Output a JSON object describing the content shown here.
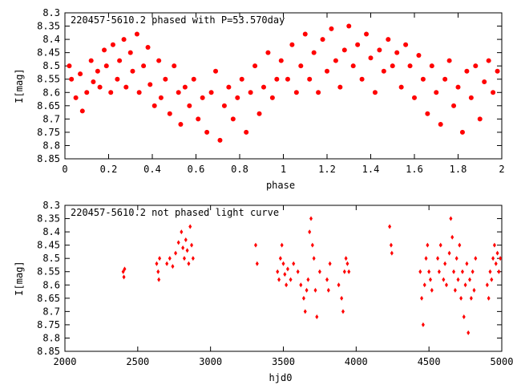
{
  "chart_data": [
    {
      "type": "scatter",
      "title": "220457-5610.2 phased with P=53.570day",
      "xlabel": "phase",
      "ylabel": "I[mag]",
      "xlim": [
        0,
        2
      ],
      "ylim": [
        8.85,
        8.3
      ],
      "y_inverted": true,
      "xticks": [
        "0",
        "0.2",
        "0.4",
        "0.6",
        "0.8",
        "1",
        "1.2",
        "1.4",
        "1.6",
        "1.8",
        "2"
      ],
      "yticks": [
        "8.3",
        "8.35",
        "8.4",
        "8.45",
        "8.5",
        "8.55",
        "8.6",
        "8.65",
        "8.7",
        "8.75",
        "8.8",
        "8.85"
      ],
      "color": "#ff0000",
      "marker": "filled-circle",
      "points_estimated": [
        [
          0.02,
          8.5
        ],
        [
          0.03,
          8.55
        ],
        [
          0.05,
          8.62
        ],
        [
          0.07,
          8.53
        ],
        [
          0.08,
          8.67
        ],
        [
          0.1,
          8.6
        ],
        [
          0.12,
          8.48
        ],
        [
          0.13,
          8.56
        ],
        [
          0.15,
          8.52
        ],
        [
          0.16,
          8.58
        ],
        [
          0.18,
          8.44
        ],
        [
          0.19,
          8.5
        ],
        [
          0.21,
          8.6
        ],
        [
          0.22,
          8.42
        ],
        [
          0.24,
          8.55
        ],
        [
          0.25,
          8.48
        ],
        [
          0.27,
          8.4
        ],
        [
          0.28,
          8.58
        ],
        [
          0.3,
          8.45
        ],
        [
          0.31,
          8.52
        ],
        [
          0.33,
          8.38
        ],
        [
          0.34,
          8.6
        ],
        [
          0.36,
          8.5
        ],
        [
          0.38,
          8.43
        ],
        [
          0.39,
          8.57
        ],
        [
          0.41,
          8.65
        ],
        [
          0.43,
          8.48
        ],
        [
          0.44,
          8.62
        ],
        [
          0.46,
          8.55
        ],
        [
          0.48,
          8.68
        ],
        [
          0.5,
          8.5
        ],
        [
          0.52,
          8.6
        ],
        [
          0.53,
          8.72
        ],
        [
          0.55,
          8.58
        ],
        [
          0.57,
          8.65
        ],
        [
          0.59,
          8.55
        ],
        [
          0.61,
          8.7
        ],
        [
          0.63,
          8.62
        ],
        [
          0.65,
          8.75
        ],
        [
          0.67,
          8.6
        ],
        [
          0.69,
          8.52
        ],
        [
          0.71,
          8.78
        ],
        [
          0.73,
          8.65
        ],
        [
          0.75,
          8.58
        ],
        [
          0.77,
          8.7
        ],
        [
          0.79,
          8.62
        ],
        [
          0.81,
          8.55
        ],
        [
          0.83,
          8.75
        ],
        [
          0.85,
          8.6
        ],
        [
          0.87,
          8.5
        ],
        [
          0.89,
          8.68
        ],
        [
          0.91,
          8.58
        ],
        [
          0.93,
          8.45
        ],
        [
          0.95,
          8.62
        ],
        [
          0.97,
          8.55
        ],
        [
          0.99,
          8.48
        ],
        [
          1.02,
          8.55
        ],
        [
          1.04,
          8.42
        ],
        [
          1.06,
          8.6
        ],
        [
          1.08,
          8.5
        ],
        [
          1.1,
          8.38
        ],
        [
          1.12,
          8.55
        ],
        [
          1.14,
          8.45
        ],
        [
          1.16,
          8.6
        ],
        [
          1.18,
          8.4
        ],
        [
          1.2,
          8.52
        ],
        [
          1.22,
          8.36
        ],
        [
          1.24,
          8.48
        ],
        [
          1.26,
          8.58
        ],
        [
          1.28,
          8.44
        ],
        [
          1.3,
          8.35
        ],
        [
          1.32,
          8.5
        ],
        [
          1.34,
          8.42
        ],
        [
          1.36,
          8.55
        ],
        [
          1.38,
          8.38
        ],
        [
          1.4,
          8.47
        ],
        [
          1.42,
          8.6
        ],
        [
          1.44,
          8.44
        ],
        [
          1.46,
          8.52
        ],
        [
          1.48,
          8.4
        ],
        [
          1.5,
          8.5
        ],
        [
          1.52,
          8.45
        ],
        [
          1.54,
          8.58
        ],
        [
          1.56,
          8.42
        ],
        [
          1.58,
          8.5
        ],
        [
          1.6,
          8.62
        ],
        [
          1.62,
          8.46
        ],
        [
          1.64,
          8.55
        ],
        [
          1.66,
          8.68
        ],
        [
          1.68,
          8.5
        ],
        [
          1.7,
          8.6
        ],
        [
          1.72,
          8.72
        ],
        [
          1.74,
          8.55
        ],
        [
          1.76,
          8.48
        ],
        [
          1.78,
          8.65
        ],
        [
          1.8,
          8.58
        ],
        [
          1.82,
          8.75
        ],
        [
          1.84,
          8.52
        ],
        [
          1.86,
          8.62
        ],
        [
          1.88,
          8.5
        ],
        [
          1.9,
          8.7
        ],
        [
          1.92,
          8.56
        ],
        [
          1.94,
          8.48
        ],
        [
          1.96,
          8.6
        ],
        [
          1.98,
          8.52
        ]
      ]
    },
    {
      "type": "scatter",
      "title": "220457-5610.2 not phased light curve",
      "xlabel": "hjd0",
      "ylabel": "I[mag]",
      "xlim": [
        2000,
        5000
      ],
      "ylim": [
        8.85,
        8.3
      ],
      "y_inverted": true,
      "xticks": [
        "2000",
        "2500",
        "3000",
        "3500",
        "4000",
        "4500",
        "5000"
      ],
      "yticks": [
        "8.3",
        "8.35",
        "8.4",
        "8.45",
        "8.5",
        "8.55",
        "8.6",
        "8.65",
        "8.7",
        "8.75",
        "8.8",
        "8.85"
      ],
      "color": "#ff0000",
      "marker": "small-diamond",
      "points_estimated": [
        [
          2400,
          8.55
        ],
        [
          2405,
          8.57
        ],
        [
          2410,
          8.54
        ],
        [
          2630,
          8.52
        ],
        [
          2640,
          8.55
        ],
        [
          2645,
          8.58
        ],
        [
          2650,
          8.5
        ],
        [
          2700,
          8.52
        ],
        [
          2720,
          8.5
        ],
        [
          2740,
          8.53
        ],
        [
          2760,
          8.48
        ],
        [
          2780,
          8.44
        ],
        [
          2800,
          8.4
        ],
        [
          2810,
          8.46
        ],
        [
          2820,
          8.5
        ],
        [
          2830,
          8.43
        ],
        [
          2840,
          8.47
        ],
        [
          2850,
          8.52
        ],
        [
          2860,
          8.38
        ],
        [
          2870,
          8.45
        ],
        [
          2880,
          8.5
        ],
        [
          3310,
          8.45
        ],
        [
          3320,
          8.52
        ],
        [
          3460,
          8.55
        ],
        [
          3470,
          8.58
        ],
        [
          3480,
          8.5
        ],
        [
          3490,
          8.45
        ],
        [
          3500,
          8.52
        ],
        [
          3510,
          8.56
        ],
        [
          3520,
          8.6
        ],
        [
          3530,
          8.54
        ],
        [
          3550,
          8.58
        ],
        [
          3570,
          8.52
        ],
        [
          3600,
          8.55
        ],
        [
          3620,
          8.6
        ],
        [
          3640,
          8.65
        ],
        [
          3650,
          8.7
        ],
        [
          3660,
          8.62
        ],
        [
          3670,
          8.58
        ],
        [
          3680,
          8.4
        ],
        [
          3690,
          8.35
        ],
        [
          3700,
          8.45
        ],
        [
          3710,
          8.5
        ],
        [
          3720,
          8.62
        ],
        [
          3730,
          8.72
        ],
        [
          3750,
          8.55
        ],
        [
          3800,
          8.58
        ],
        [
          3810,
          8.62
        ],
        [
          3820,
          8.52
        ],
        [
          3880,
          8.6
        ],
        [
          3900,
          8.65
        ],
        [
          3910,
          8.7
        ],
        [
          3920,
          8.55
        ],
        [
          3930,
          8.5
        ],
        [
          3940,
          8.52
        ],
        [
          3950,
          8.55
        ],
        [
          4230,
          8.38
        ],
        [
          4240,
          8.45
        ],
        [
          4245,
          8.48
        ],
        [
          4440,
          8.55
        ],
        [
          4450,
          8.65
        ],
        [
          4460,
          8.75
        ],
        [
          4470,
          8.6
        ],
        [
          4480,
          8.5
        ],
        [
          4490,
          8.45
        ],
        [
          4500,
          8.55
        ],
        [
          4510,
          8.58
        ],
        [
          4520,
          8.62
        ],
        [
          4560,
          8.5
        ],
        [
          4570,
          8.55
        ],
        [
          4580,
          8.45
        ],
        [
          4600,
          8.58
        ],
        [
          4610,
          8.52
        ],
        [
          4620,
          8.6
        ],
        [
          4640,
          8.48
        ],
        [
          4650,
          8.35
        ],
        [
          4660,
          8.42
        ],
        [
          4670,
          8.55
        ],
        [
          4680,
          8.62
        ],
        [
          4690,
          8.5
        ],
        [
          4700,
          8.58
        ],
        [
          4710,
          8.45
        ],
        [
          4720,
          8.65
        ],
        [
          4730,
          8.55
        ],
        [
          4740,
          8.72
        ],
        [
          4750,
          8.6
        ],
        [
          4760,
          8.52
        ],
        [
          4770,
          8.78
        ],
        [
          4780,
          8.58
        ],
        [
          4790,
          8.65
        ],
        [
          4800,
          8.55
        ],
        [
          4810,
          8.62
        ],
        [
          4820,
          8.5
        ],
        [
          4900,
          8.6
        ],
        [
          4910,
          8.65
        ],
        [
          4920,
          8.55
        ],
        [
          4930,
          8.58
        ],
        [
          4940,
          8.5
        ],
        [
          4950,
          8.45
        ],
        [
          4960,
          8.52
        ],
        [
          4970,
          8.48
        ],
        [
          4980,
          8.55
        ],
        [
          4990,
          8.5
        ]
      ]
    }
  ]
}
